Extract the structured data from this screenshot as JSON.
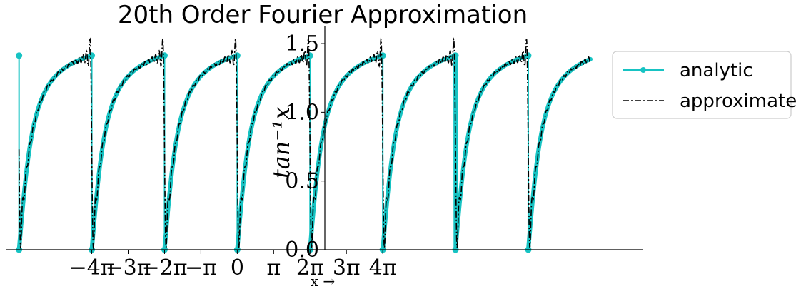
{
  "chart_data": {
    "type": "line",
    "title": "20th Order Fourier Approximation",
    "xlabel": "x →",
    "ylabel": "tan⁻¹x",
    "xlim": [
      -20.0,
      35.0
    ],
    "ylim": [
      0.0,
      1.63
    ],
    "x_ticks": [
      {
        "value": -12.566,
        "label": "−4π"
      },
      {
        "value": -9.425,
        "label": "−3π"
      },
      {
        "value": -6.283,
        "label": "−2π"
      },
      {
        "value": -3.142,
        "label": "−π"
      },
      {
        "value": 0,
        "label": "0"
      },
      {
        "value": 3.142,
        "label": "π"
      },
      {
        "value": 6.283,
        "label": "2π"
      },
      {
        "value": 9.425,
        "label": "3π"
      },
      {
        "value": 12.566,
        "label": "4π"
      }
    ],
    "y_ticks": [
      {
        "value": 0.0,
        "label": "0.0"
      },
      {
        "value": 0.5,
        "label": "0.5"
      },
      {
        "value": 1.0,
        "label": "1.0"
      },
      {
        "value": 1.5,
        "label": "1.5"
      }
    ],
    "period": 6.283,
    "x_start": -18.85,
    "x_end": 30.5,
    "series": [
      {
        "name": "analytic",
        "color": "#17c3c3",
        "style": "solid-markers"
      },
      {
        "name": "approximate",
        "color": "#000000",
        "style": "dash-dot"
      }
    ],
    "legend_position": "right",
    "grid": false
  }
}
